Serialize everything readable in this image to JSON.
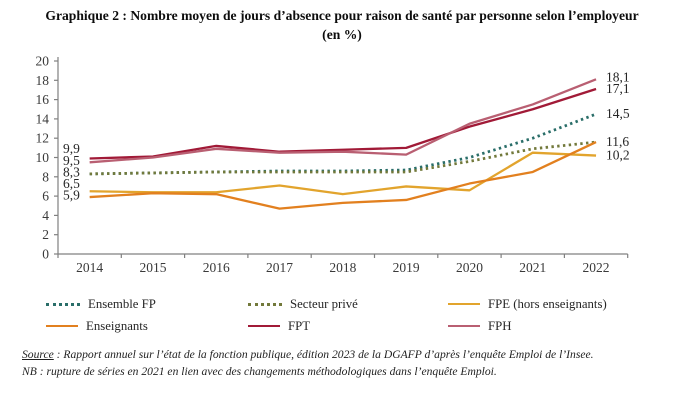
{
  "title": "Graphique 2 : Nombre moyen de jours d’absence pour raison de santé par personne selon l’employeur (en %)",
  "chart_data": {
    "type": "line",
    "x": [
      2014,
      2015,
      2016,
      2017,
      2018,
      2019,
      2020,
      2021,
      2022
    ],
    "ylim": [
      0,
      20
    ],
    "yticks": [
      0,
      2,
      4,
      6,
      8,
      10,
      12,
      14,
      16,
      18,
      20
    ],
    "grid": false,
    "legend_position": "bottom",
    "axis_color": "#808080",
    "tick_label_color": "#3a3a3a",
    "value_label_color": "#262626",
    "series": [
      {
        "name": "Ensemble FP",
        "color": "#2a6e69",
        "style": "dotted",
        "values": [
          8.3,
          8.4,
          8.5,
          8.6,
          8.6,
          8.7,
          10.0,
          12.0,
          14.5
        ]
      },
      {
        "name": "Secteur privé",
        "color": "#72793b",
        "style": "dotted",
        "values": [
          8.3,
          8.4,
          8.5,
          8.5,
          8.5,
          8.5,
          9.6,
          10.9,
          11.6
        ]
      },
      {
        "name": "FPE (hors enseignants)",
        "color": "#e2a42d",
        "style": "solid",
        "values": [
          6.5,
          6.4,
          6.4,
          7.1,
          6.2,
          7.0,
          6.6,
          10.5,
          10.2
        ]
      },
      {
        "name": "Enseignants",
        "color": "#e2801f",
        "style": "solid",
        "values": [
          5.9,
          6.3,
          6.2,
          4.7,
          5.3,
          5.6,
          7.3,
          8.5,
          11.6
        ]
      },
      {
        "name": "FPT",
        "color": "#a11a37",
        "style": "solid",
        "values": [
          9.9,
          10.1,
          11.2,
          10.6,
          10.8,
          11.0,
          13.2,
          15.0,
          17.1
        ]
      },
      {
        "name": "FPH",
        "color": "#b95f72",
        "style": "solid",
        "values": [
          9.5,
          10.0,
          10.9,
          10.5,
          10.6,
          10.3,
          13.5,
          15.5,
          18.1
        ]
      }
    ],
    "left_value_labels": [
      {
        "text": "9,9",
        "v": 9.9
      },
      {
        "text": "9,5",
        "v": 9.5
      },
      {
        "text": "8,3",
        "v": 8.3
      },
      {
        "text": "6,5",
        "v": 6.5
      },
      {
        "text": "5,9",
        "v": 5.9
      }
    ],
    "right_value_labels": [
      {
        "text": "18,1",
        "v": 18.1
      },
      {
        "text": "17,1",
        "v": 17.1
      },
      {
        "text": "14,5",
        "v": 14.5
      },
      {
        "text": "11,6",
        "v": 11.6
      },
      {
        "text": "10,2",
        "v": 10.2
      }
    ]
  },
  "legend": {
    "items": [
      {
        "label": "Ensemble FP",
        "color": "#2a6e69",
        "style": "dotted"
      },
      {
        "label": "Secteur privé",
        "color": "#72793b",
        "style": "dotted"
      },
      {
        "label": "FPE (hors enseignants)",
        "color": "#e2a42d",
        "style": "solid"
      },
      {
        "label": "Enseignants",
        "color": "#e2801f",
        "style": "solid"
      },
      {
        "label": "FPT",
        "color": "#a11a37",
        "style": "solid"
      },
      {
        "label": "FPH",
        "color": "#b95f72",
        "style": "solid"
      }
    ]
  },
  "footer": {
    "source_label": "Source",
    "source_text": " : Rapport annuel sur l’état de la fonction publique, édition 2023 de la DGAFP d’après l’enquête Emploi de l’Insee.",
    "nb": "NB : rupture de séries en 2021 en lien avec des changements méthodologiques dans l’enquête Emploi."
  }
}
